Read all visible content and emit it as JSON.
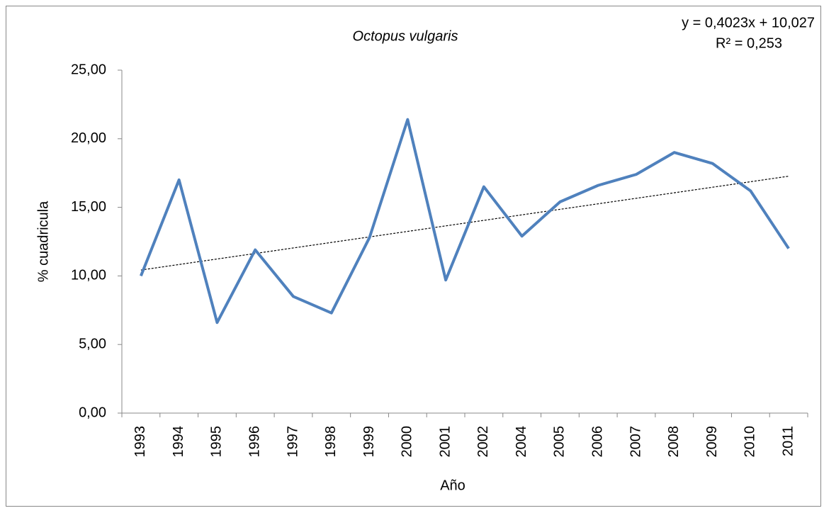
{
  "chart_data": {
    "type": "line",
    "title": "Octopus vulgaris",
    "annotations": [
      "y = 0,4023x + 10,027",
      "R² = 0,253"
    ],
    "x_label": "Año",
    "y_label": "% cuadricula",
    "categories": [
      "1993",
      "1994",
      "1995",
      "1996",
      "1997",
      "1998",
      "1999",
      "2000",
      "2001",
      "2002",
      "2004",
      "2005",
      "2006",
      "2007",
      "2008",
      "2009",
      "2010",
      "2011"
    ],
    "values": [
      10.0,
      17.0,
      6.6,
      11.9,
      8.5,
      7.3,
      12.8,
      21.4,
      9.7,
      16.5,
      12.9,
      15.4,
      16.6,
      17.4,
      19.0,
      18.2,
      16.2,
      12.0
    ],
    "color": "#4f81bd",
    "trendline": {
      "slope": 0.4023,
      "intercept": 10.027,
      "color": "#000000"
    },
    "ylim": [
      0,
      25
    ],
    "yticks": [
      {
        "value": 0,
        "label": "0,00"
      },
      {
        "value": 5,
        "label": "5,00"
      },
      {
        "value": 10,
        "label": "10,00"
      },
      {
        "value": 15,
        "label": "15,00"
      },
      {
        "value": 20,
        "label": "20,00"
      },
      {
        "value": 25,
        "label": "25,00"
      }
    ],
    "grid": false
  }
}
